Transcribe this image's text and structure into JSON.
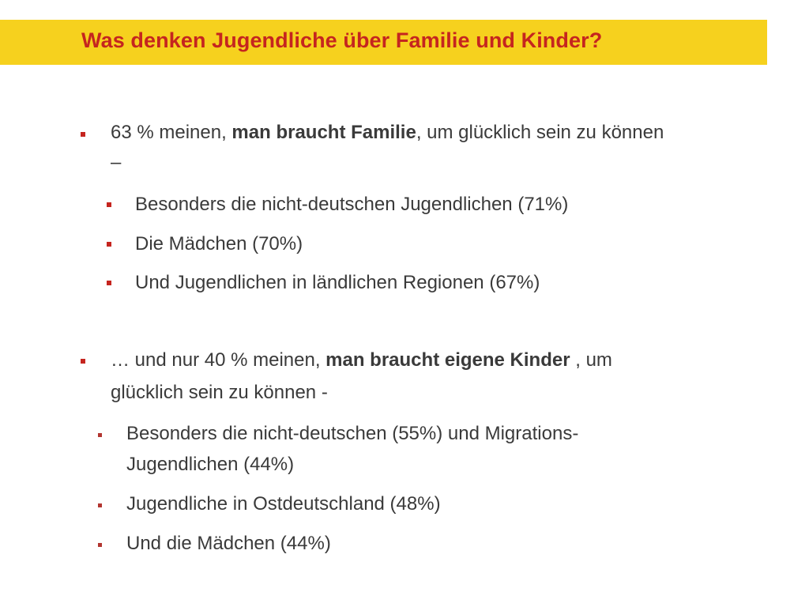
{
  "title": "Was denken Jugendliche über Familie und Kinder?",
  "section1": {
    "main": {
      "pre": "63 % meinen, ",
      "bold": "man braucht Familie",
      "post": ", um glücklich sein zu können",
      "line2": "–"
    },
    "subs": [
      "Besonders die nicht-deutschen Jugendlichen (71%)",
      "Die Mädchen (70%)",
      "Und Jugendlichen in ländlichen Regionen (67%)"
    ]
  },
  "section2": {
    "main": {
      "pre": "… und nur 40 % meinen, ",
      "bold": "man braucht eigene Kinder",
      "post": " , um",
      "line2": "glücklich sein zu können -"
    },
    "subs": [
      {
        "line1": "Besonders die nicht-deutschen (55%)  und Migrations-",
        "line2": "Jugendlichen (44%)"
      },
      {
        "line1": "Jugendliche in Ostdeutschland (48%)"
      },
      {
        "line1": "Und die Mädchen (44%)"
      }
    ]
  }
}
